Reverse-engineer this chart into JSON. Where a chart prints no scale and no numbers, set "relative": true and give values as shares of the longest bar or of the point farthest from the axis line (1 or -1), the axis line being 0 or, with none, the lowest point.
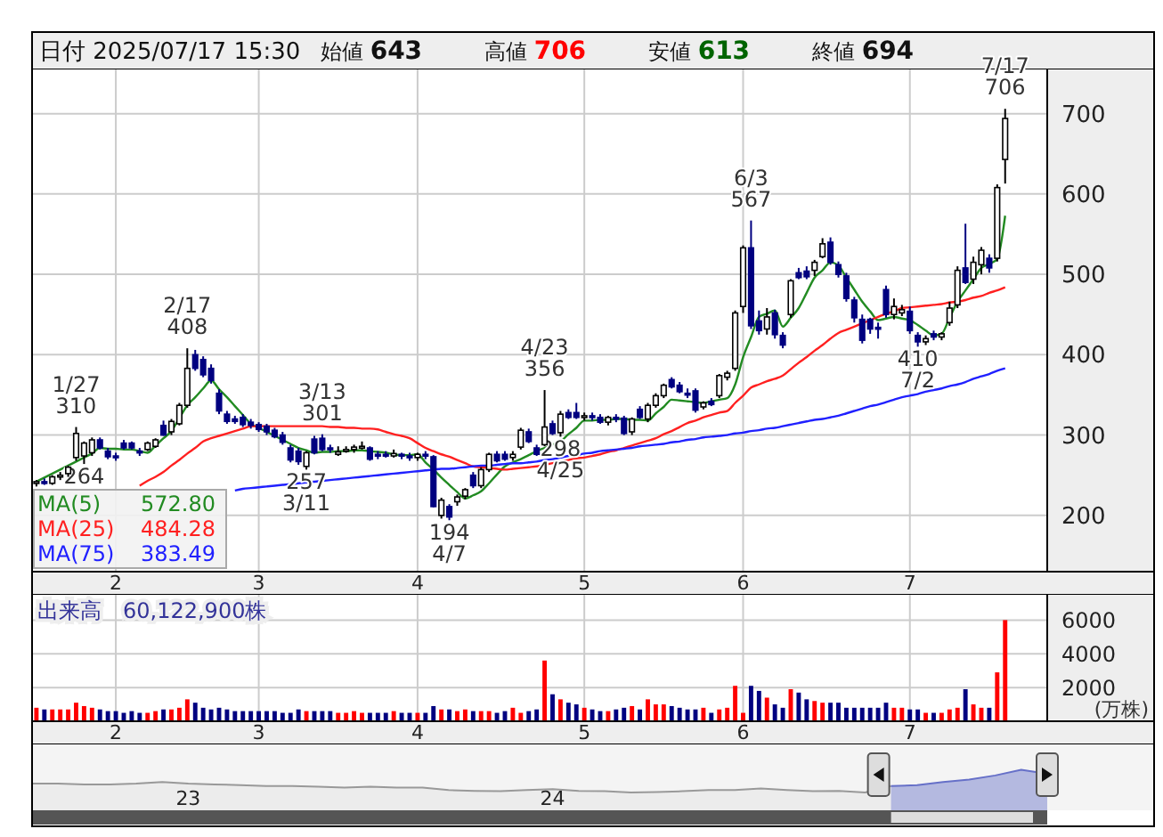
{
  "chart_data": [
    {
      "type": "candlestick",
      "title": "日付 2025/07/17 15:30",
      "categories": [
        null,
        null,
        null,
        null,
        null,
        null,
        null,
        null,
        null,
        null,
        "2",
        null,
        null,
        null,
        null,
        null,
        null,
        null,
        null,
        null,
        null,
        null,
        null,
        null,
        null,
        null,
        null,
        null,
        "3",
        null,
        null,
        null,
        null,
        null,
        null,
        null,
        null,
        null,
        null,
        null,
        null,
        null,
        null,
        null,
        null,
        null,
        null,
        null,
        "4",
        null,
        null,
        null,
        null,
        null,
        null,
        null,
        null,
        null,
        null,
        null,
        null,
        null,
        null,
        null,
        null,
        null,
        null,
        null,
        null,
        "5",
        null,
        null,
        null,
        null,
        null,
        null,
        null,
        null,
        null,
        null,
        null,
        null,
        null,
        null,
        null,
        null,
        null,
        null,
        null,
        "6",
        null,
        null,
        null,
        null,
        null,
        null,
        null,
        null,
        null,
        null,
        null,
        null,
        null,
        null,
        null,
        null,
        null,
        null,
        null,
        null,
        "7",
        null,
        null,
        null,
        null,
        null,
        null,
        null,
        null,
        null,
        null,
        null,
        null
      ],
      "ohlc": [
        [
          240,
          244,
          236,
          242
        ],
        [
          242,
          246,
          238,
          240
        ],
        [
          240,
          250,
          238,
          248
        ],
        [
          248,
          254,
          244,
          250
        ],
        [
          252,
          262,
          248,
          260
        ],
        [
          272,
          310,
          268,
          302
        ],
        [
          274,
          292,
          264,
          290
        ],
        [
          278,
          297,
          274,
          294
        ],
        [
          294,
          297,
          282,
          284
        ],
        [
          280,
          284,
          270,
          273
        ],
        [
          274,
          278,
          268,
          272
        ],
        [
          290,
          294,
          282,
          284
        ],
        [
          290,
          292,
          282,
          284
        ],
        [
          280,
          284,
          274,
          278
        ],
        [
          282,
          292,
          280,
          290
        ],
        [
          286,
          296,
          284,
          294
        ],
        [
          312,
          318,
          299,
          300
        ],
        [
          304,
          320,
          300,
          317
        ],
        [
          314,
          340,
          312,
          337
        ],
        [
          337,
          408,
          334,
          383
        ],
        [
          400,
          406,
          380,
          383
        ],
        [
          394,
          398,
          372,
          375
        ],
        [
          383,
          388,
          364,
          368
        ],
        [
          352,
          357,
          326,
          330
        ],
        [
          326,
          330,
          314,
          317
        ],
        [
          320,
          324,
          314,
          317
        ],
        [
          322,
          326,
          310,
          313
        ],
        [
          316,
          320,
          308,
          312
        ],
        [
          313,
          316,
          304,
          307
        ],
        [
          311,
          314,
          300,
          304
        ],
        [
          306,
          309,
          296,
          298
        ],
        [
          300,
          304,
          288,
          291
        ],
        [
          284,
          288,
          266,
          269
        ],
        [
          280,
          284,
          263,
          267
        ],
        [
          261,
          280,
          257,
          278
        ],
        [
          295,
          299,
          276,
          278
        ],
        [
          296,
          301,
          280,
          282
        ],
        [
          284,
          288,
          278,
          282
        ],
        [
          276,
          286,
          274,
          279
        ],
        [
          280,
          286,
          278,
          282
        ],
        [
          282,
          288,
          278,
          285
        ],
        [
          284,
          292,
          282,
          286
        ],
        [
          284,
          286,
          268,
          270
        ],
        [
          276,
          280,
          270,
          274
        ],
        [
          276,
          280,
          272,
          274
        ],
        [
          274,
          282,
          272,
          277
        ],
        [
          276,
          278,
          270,
          274
        ],
        [
          274,
          278,
          268,
          272
        ],
        [
          272,
          278,
          268,
          276
        ],
        [
          276,
          280,
          270,
          274
        ],
        [
          273,
          275,
          210,
          211
        ],
        [
          200,
          222,
          196,
          219
        ],
        [
          211,
          214,
          194,
          198
        ],
        [
          217,
          226,
          212,
          223
        ],
        [
          224,
          234,
          220,
          232
        ],
        [
          250,
          254,
          234,
          237
        ],
        [
          237,
          260,
          234,
          257
        ],
        [
          257,
          278,
          254,
          276
        ],
        [
          276,
          280,
          266,
          268
        ],
        [
          276,
          280,
          268,
          270
        ],
        [
          272,
          280,
          268,
          276
        ],
        [
          285,
          309,
          282,
          306
        ],
        [
          304,
          308,
          290,
          292
        ],
        [
          284,
          288,
          274,
          276
        ],
        [
          288,
          356,
          286,
          310
        ],
        [
          314,
          318,
          300,
          302
        ],
        [
          303,
          330,
          298,
          326
        ],
        [
          328,
          332,
          320,
          322
        ],
        [
          328,
          340,
          320,
          322
        ],
        [
          322,
          328,
          318,
          324
        ],
        [
          324,
          328,
          318,
          322
        ],
        [
          322,
          326,
          314,
          316
        ],
        [
          316,
          324,
          312,
          322
        ],
        [
          322,
          326,
          316,
          320
        ],
        [
          321,
          324,
          300,
          302
        ],
        [
          304,
          322,
          300,
          320
        ],
        [
          332,
          336,
          320,
          322
        ],
        [
          320,
          340,
          316,
          337
        ],
        [
          337,
          352,
          334,
          349
        ],
        [
          349,
          364,
          346,
          362
        ],
        [
          369,
          372,
          358,
          360
        ],
        [
          362,
          366,
          352,
          354
        ],
        [
          352,
          358,
          346,
          350
        ],
        [
          355,
          358,
          328,
          331
        ],
        [
          335,
          342,
          332,
          340
        ],
        [
          342,
          346,
          336,
          338
        ],
        [
          349,
          376,
          346,
          374
        ],
        [
          372,
          380,
          368,
          377
        ],
        [
          383,
          455,
          380,
          452
        ],
        [
          460,
          536,
          452,
          533
        ],
        [
          533,
          567,
          432,
          436
        ],
        [
          442,
          455,
          425,
          430
        ],
        [
          432,
          458,
          425,
          447
        ],
        [
          452,
          456,
          420,
          425
        ],
        [
          424,
          428,
          408,
          412
        ],
        [
          450,
          494,
          446,
          492
        ],
        [
          502,
          508,
          494,
          496
        ],
        [
          504,
          510,
          494,
          497
        ],
        [
          505,
          518,
          498,
          515
        ],
        [
          522,
          545,
          520,
          538
        ],
        [
          540,
          546,
          512,
          515
        ],
        [
          512,
          516,
          496,
          500
        ],
        [
          498,
          502,
          466,
          470
        ],
        [
          468,
          472,
          440,
          446
        ],
        [
          444,
          450,
          414,
          418
        ],
        [
          444,
          446,
          426,
          432
        ],
        [
          434,
          440,
          420,
          432
        ],
        [
          481,
          486,
          446,
          450
        ],
        [
          450,
          470,
          444,
          460
        ],
        [
          452,
          462,
          448,
          456
        ],
        [
          454,
          460,
          426,
          430
        ],
        [
          424,
          428,
          410,
          416
        ],
        [
          416,
          424,
          412,
          420
        ],
        [
          426,
          430,
          418,
          422
        ],
        [
          422,
          428,
          418,
          426
        ],
        [
          440,
          466,
          436,
          458
        ],
        [
          462,
          510,
          458,
          505
        ],
        [
          508,
          563,
          488,
          490
        ],
        [
          494,
          522,
          488,
          515
        ],
        [
          512,
          534,
          500,
          530
        ],
        [
          520,
          525,
          502,
          508
        ],
        [
          520,
          612,
          516,
          608
        ],
        [
          643,
          706,
          613,
          694
        ]
      ],
      "series": [
        {
          "name": "MA(5) 572.80",
          "type": "line",
          "color": "#228b22",
          "values": [
            242,
            247,
            252,
            257,
            262,
            267,
            272,
            277,
            284,
            283,
            283,
            282,
            282,
            280,
            278,
            287,
            296,
            305,
            321,
            337,
            347,
            358,
            368,
            357,
            347,
            336,
            325,
            314,
            309,
            304,
            299,
            294,
            289,
            284,
            281,
            278,
            279,
            279,
            280,
            280,
            281,
            281,
            280,
            279,
            278,
            276,
            275,
            275,
            276,
            266,
            257,
            247,
            238,
            229,
            221,
            225,
            230,
            240,
            251,
            261,
            266,
            270,
            275,
            280,
            284,
            288,
            292,
            301,
            309,
            318,
            318,
            319,
            319,
            320,
            320,
            319,
            319,
            318,
            327,
            335,
            344,
            343,
            342,
            341,
            340,
            342,
            344,
            346,
            363,
            397,
            422,
            447,
            451,
            455,
            435,
            446,
            458,
            477,
            496,
            505,
            515,
            511,
            496,
            481,
            466,
            454,
            443,
            445,
            447,
            445,
            443,
            437,
            430,
            424,
            426,
            446,
            466,
            480,
            494,
            508,
            513,
            519,
            573
          ]
        },
        {
          "name": "MA(25) 484.28",
          "type": "line",
          "color": "#ff2020",
          "values": [
            null,
            null,
            null,
            null,
            null,
            null,
            null,
            null,
            null,
            null,
            null,
            null,
            null,
            237,
            243,
            248,
            254,
            262,
            269,
            277,
            284,
            292,
            296,
            299,
            302,
            305,
            308,
            311,
            311,
            311,
            311,
            311,
            311,
            311,
            311,
            311,
            311,
            310,
            310,
            309,
            309,
            308,
            308,
            307,
            304,
            301,
            299,
            296,
            290,
            284,
            280,
            276,
            273,
            269,
            265,
            261,
            260,
            259,
            258,
            257,
            258,
            259,
            260,
            261,
            263,
            265,
            267,
            269,
            271,
            272,
            274,
            276,
            279,
            281,
            284,
            287,
            290,
            293,
            296,
            301,
            305,
            310,
            315,
            318,
            322,
            325,
            328,
            330,
            340,
            349,
            359,
            363,
            367,
            370,
            374,
            382,
            390,
            397,
            405,
            412,
            420,
            427,
            431,
            435,
            439,
            443,
            447,
            451,
            454,
            458,
            459,
            460,
            461,
            462,
            463,
            465,
            466,
            468,
            471,
            473,
            477,
            480,
            484
          ]
        },
        {
          "name": "MA(75) 383.49",
          "type": "line",
          "color": "#2020ff",
          "values": [
            null,
            null,
            null,
            null,
            null,
            null,
            null,
            null,
            null,
            null,
            null,
            null,
            null,
            null,
            null,
            null,
            null,
            null,
            null,
            null,
            null,
            null,
            null,
            null,
            null,
            231,
            233,
            234,
            235,
            236,
            237,
            238,
            239,
            240,
            241,
            242,
            243,
            244,
            245,
            246,
            247,
            248,
            249,
            250,
            251,
            252,
            253,
            254,
            255,
            256,
            257,
            258,
            258,
            259,
            260,
            261,
            262,
            262,
            263,
            264,
            265,
            265,
            266,
            267,
            269,
            270,
            272,
            274,
            275,
            277,
            278,
            280,
            281,
            282,
            283,
            284,
            286,
            287,
            288,
            289,
            291,
            292,
            294,
            295,
            297,
            298,
            299,
            300,
            302,
            303,
            305,
            306,
            308,
            309,
            311,
            313,
            315,
            317,
            319,
            320,
            322,
            324,
            327,
            330,
            333,
            336,
            338,
            341,
            344,
            347,
            349,
            351,
            354,
            356,
            358,
            361,
            363,
            366,
            370,
            373,
            376,
            380,
            383
          ]
        }
      ],
      "ylim": [
        130,
        755
      ],
      "yticks": [
        200,
        300,
        400,
        500,
        600,
        700
      ],
      "grid": true,
      "annotations": [
        "始値 643",
        "高値 706",
        "安値 613",
        "終値 694",
        {
          "text": "1/27\n310",
          "y": 310
        },
        {
          "text": "264",
          "y": 264
        },
        {
          "text": "2/17\n408",
          "y": 408
        },
        {
          "text": "257\n3/11",
          "y": 257
        },
        {
          "text": "3/13\n301",
          "y": 301
        },
        {
          "text": "194\n4/7",
          "y": 194
        },
        {
          "text": "4/23\n356",
          "y": 356
        },
        {
          "text": "298\n4/25",
          "y": 298
        },
        {
          "text": "6/3\n567",
          "y": 567
        },
        {
          "text": "410\n7/2",
          "y": 410
        },
        {
          "text": "7/17\n706",
          "y": 706
        }
      ]
    },
    {
      "type": "bar",
      "title": "出来高　60,122,900株",
      "ylabel": "(万株)",
      "categories": [
        null,
        null,
        null,
        null,
        null,
        null,
        null,
        null,
        null,
        null,
        "2",
        null,
        null,
        null,
        null,
        null,
        null,
        null,
        null,
        null,
        null,
        null,
        null,
        null,
        null,
        null,
        null,
        null,
        "3",
        null,
        null,
        null,
        null,
        null,
        null,
        null,
        null,
        null,
        null,
        null,
        null,
        null,
        null,
        null,
        null,
        null,
        null,
        null,
        "4",
        null,
        null,
        null,
        null,
        null,
        null,
        null,
        null,
        null,
        null,
        null,
        null,
        null,
        null,
        null,
        null,
        null,
        null,
        null,
        null,
        "5",
        null,
        null,
        null,
        null,
        null,
        null,
        null,
        null,
        null,
        null,
        null,
        null,
        null,
        null,
        null,
        null,
        null,
        null,
        null,
        "6",
        null,
        null,
        null,
        null,
        null,
        null,
        null,
        null,
        null,
        null,
        null,
        null,
        null,
        null,
        null,
        null,
        null,
        null,
        null,
        null,
        "7",
        null,
        null,
        null,
        null,
        null,
        null,
        null,
        null,
        null,
        null,
        null,
        null
      ],
      "values": [
        800,
        700,
        700,
        700,
        700,
        1100,
        900,
        800,
        700,
        600,
        600,
        500,
        600,
        500,
        500,
        600,
        700,
        700,
        800,
        1300,
        1100,
        800,
        700,
        800,
        700,
        600,
        600,
        600,
        600,
        600,
        600,
        500,
        500,
        700,
        600,
        600,
        600,
        600,
        500,
        500,
        600,
        500,
        500,
        500,
        500,
        600,
        500,
        500,
        500,
        500,
        900,
        700,
        700,
        600,
        700,
        600,
        600,
        600,
        500,
        600,
        800,
        500,
        600,
        700,
        3600,
        1600,
        1300,
        1100,
        1000,
        800,
        700,
        600,
        600,
        700,
        800,
        900,
        700,
        1300,
        1000,
        1000,
        900,
        800,
        700,
        700,
        800,
        500,
        700,
        800,
        2100,
        500,
        2100,
        1800,
        1400,
        1000,
        800,
        1900,
        1700,
        1300,
        1200,
        1100,
        1100,
        1100,
        800,
        800,
        800,
        800,
        800,
        1100,
        800,
        800,
        700,
        700,
        500,
        500,
        500,
        700,
        800,
        1900,
        1000,
        800,
        800,
        2900,
        6000
      ],
      "colors": [
        "#ff0000",
        "#000080",
        "#ff0000",
        "#ff0000",
        "#ff0000",
        "#ff0000",
        "#ff0000",
        "#ff0000",
        "#000080",
        "#000080",
        "#000080",
        "#000080",
        "#000080",
        "#000080",
        "#ff0000",
        "#ff0000",
        "#000080",
        "#ff0000",
        "#ff0000",
        "#ff0000",
        "#000080",
        "#000080",
        "#000080",
        "#000080",
        "#000080",
        "#000080",
        "#000080",
        "#000080",
        "#000080",
        "#000080",
        "#000080",
        "#000080",
        "#000080",
        "#000080",
        "#ff0000",
        "#000080",
        "#000080",
        "#000080",
        "#ff0000",
        "#ff0000",
        "#ff0000",
        "#ff0000",
        "#000080",
        "#000080",
        "#000080",
        "#ff0000",
        "#000080",
        "#000080",
        "#ff0000",
        "#000080",
        "#000080",
        "#ff0000",
        "#000080",
        "#ff0000",
        "#ff0000",
        "#000080",
        "#ff0000",
        "#ff0000",
        "#000080",
        "#000080",
        "#ff0000",
        "#ff0000",
        "#000080",
        "#000080",
        "#ff0000",
        "#000080",
        "#ff0000",
        "#000080",
        "#000080",
        "#ff0000",
        "#000080",
        "#000080",
        "#ff0000",
        "#000080",
        "#000080",
        "#ff0000",
        "#000080",
        "#ff0000",
        "#ff0000",
        "#ff0000",
        "#000080",
        "#000080",
        "#000080",
        "#000080",
        "#ff0000",
        "#000080",
        "#ff0000",
        "#ff0000",
        "#ff0000",
        "#ff0000",
        "#000080",
        "#000080",
        "#ff0000",
        "#000080",
        "#000080",
        "#ff0000",
        "#000080",
        "#000080",
        "#ff0000",
        "#ff0000",
        "#000080",
        "#000080",
        "#000080",
        "#000080",
        "#000080",
        "#000080",
        "#000080",
        "#000080",
        "#ff0000",
        "#ff0000",
        "#000080",
        "#000080",
        "#ff0000",
        "#000080",
        "#ff0000",
        "#ff0000",
        "#ff0000",
        "#000080",
        "#ff0000",
        "#ff0000",
        "#000080",
        "#ff0000",
        "#ff0000"
      ],
      "ylim": [
        0,
        7500
      ],
      "yticks": [
        2000,
        4000,
        6000
      ],
      "grid": true
    },
    {
      "type": "area",
      "relative": true,
      "categories": [
        null,
        null,
        null,
        null,
        null,
        null,
        "23",
        null,
        null,
        null,
        null,
        null,
        null,
        null,
        null,
        null,
        null,
        null,
        null,
        null,
        "24",
        null,
        null,
        null,
        null,
        null,
        null,
        null,
        null,
        null,
        null,
        null,
        null,
        null,
        null,
        null,
        null,
        null,
        null,
        null
      ],
      "series": [
        {
          "color": "#999999",
          "values": [
            0.66,
            0.66,
            0.64,
            0.64,
            0.66,
            0.7,
            0.66,
            0.64,
            0.62,
            0.6,
            0.6,
            0.58,
            0.56,
            0.58,
            0.56,
            0.56,
            0.5,
            0.48,
            0.47,
            0.5,
            0.52,
            0.48,
            0.47,
            0.44,
            0.45,
            0.47,
            0.5,
            0.5,
            0.54,
            0.5,
            0.47,
            0.48,
            0.44,
            0.6,
            null,
            null,
            null,
            null,
            null,
            null
          ]
        },
        {
          "color": "#6670c8",
          "values": [
            null,
            null,
            null,
            null,
            null,
            null,
            null,
            null,
            null,
            null,
            null,
            null,
            null,
            null,
            null,
            null,
            null,
            null,
            null,
            null,
            null,
            null,
            null,
            null,
            null,
            null,
            null,
            null,
            null,
            null,
            null,
            null,
            null,
            0.6,
            0.62,
            0.7,
            0.76,
            0.86,
            1,
            0.9
          ]
        }
      ]
    }
  ]
}
